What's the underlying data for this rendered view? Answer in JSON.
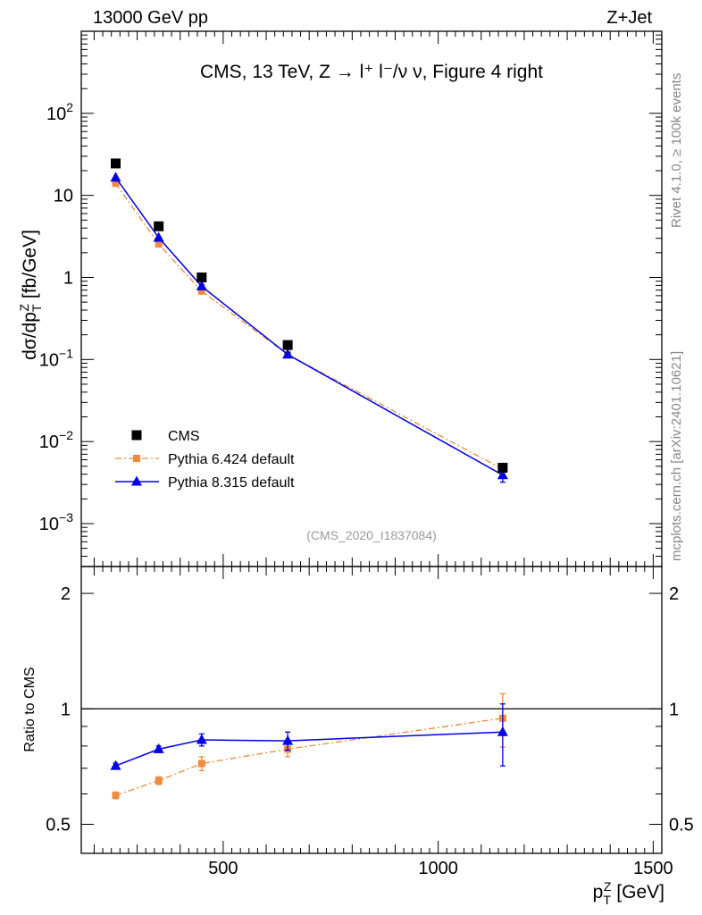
{
  "header": {
    "left_label": "13000 GeV pp",
    "right_label": "Z+Jet"
  },
  "side_labels": {
    "rivet": "Rivet 4.1.0, ≥ 100k events",
    "mcplots": "mcplots.cern.ch [arXiv:2401.10621]"
  },
  "chart_data": [
    {
      "type": "scatter",
      "panel": "main",
      "title": "CMS, 13 TeV, Z →  l⁺ l⁻/ν ν, Figure 4 right",
      "watermark": "(CMS_2020_I1837084)",
      "ylabel": "dσ/dp_T^Z [fb/GeV]",
      "yscale": "log",
      "ylim": [
        0.0003,
        1000
      ],
      "xlim": [
        170,
        1520
      ],
      "y_tick_labels": [
        "10⁻³",
        "10⁻²",
        "10⁻¹",
        "1",
        "10",
        "10²"
      ],
      "legend_position": "lower-left",
      "x": [
        250,
        350,
        450,
        650,
        1150
      ],
      "series": [
        {
          "name": "CMS",
          "values": [
            24.5,
            4.2,
            1.0,
            0.15,
            0.0048
          ],
          "color": "#000000",
          "marker": "square"
        },
        {
          "name": "Pythia 6.424 default",
          "values": [
            14.0,
            2.55,
            0.68,
            0.115,
            0.0046
          ],
          "errors": [
            0,
            0,
            0.03,
            0.005,
            0.0006
          ],
          "color": "#f08a3c",
          "marker": "square-small",
          "line": "dash-dot"
        },
        {
          "name": "Pythia 8.315 default",
          "values": [
            16.5,
            3.05,
            0.78,
            0.115,
            0.0039
          ],
          "errors": [
            0,
            0,
            0.04,
            0.006,
            0.0007
          ],
          "color": "#0000e6",
          "marker": "triangle",
          "line": "solid"
        }
      ]
    },
    {
      "type": "scatter",
      "panel": "ratio",
      "ylabel": "Ratio to CMS",
      "xlabel": "p_T^Z [GeV]",
      "yscale": "log",
      "ylim": [
        0.42,
        2.35
      ],
      "xlim": [
        170,
        1520
      ],
      "y_ticks": [
        0.5,
        1,
        2
      ],
      "y_tick_labels": [
        "0.5",
        "1",
        "2"
      ],
      "x_ticks": [
        500,
        1000,
        1500
      ],
      "x_tick_labels": [
        "500",
        "1000",
        "1500"
      ],
      "reference_line": 1,
      "x": [
        250,
        350,
        450,
        650,
        1150
      ],
      "series": [
        {
          "name": "Pythia 6.424 default",
          "values": [
            0.595,
            0.65,
            0.72,
            0.785,
            0.945
          ],
          "errors": [
            0.012,
            0.015,
            0.03,
            0.035,
            0.15
          ],
          "color": "#f08a3c",
          "marker": "square-small",
          "line": "dash-dot"
        },
        {
          "name": "Pythia 8.315 default",
          "values": [
            0.71,
            0.785,
            0.83,
            0.825,
            0.87
          ],
          "errors": [
            0.012,
            0.015,
            0.03,
            0.045,
            0.16
          ],
          "color": "#0000e6",
          "marker": "triangle",
          "line": "solid"
        }
      ]
    }
  ]
}
